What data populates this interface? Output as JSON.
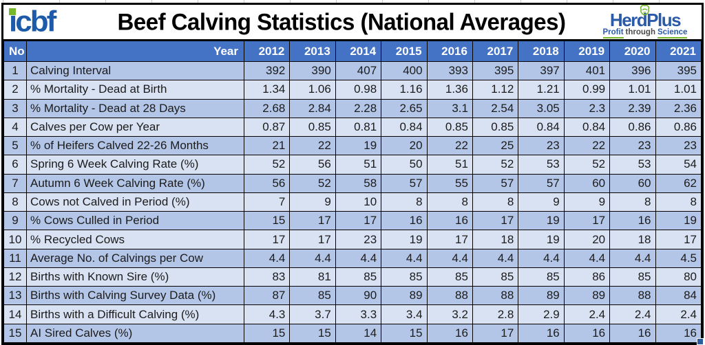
{
  "title": "Beef Calving Statistics (National Averages)",
  "logos": {
    "icbf_text": "icbf",
    "herdplus": {
      "name": "HerdPlus",
      "tagline": [
        "Profit",
        "through",
        "Science"
      ],
      "cow_icon": "cow-doodle-icon"
    }
  },
  "colors": {
    "header_bg": "#4472C4",
    "row_odd": "#B4C6E7",
    "row_even": "#D9E2F3",
    "logo_blue": "#2B5BA8",
    "logo_green": "#76B82A"
  },
  "table": {
    "no_header": "No",
    "year_header": "Year",
    "years": [
      "2012",
      "2013",
      "2014",
      "2015",
      "2016",
      "2017",
      "2018",
      "2019",
      "2020",
      "2021"
    ],
    "rows": [
      {
        "no": "1",
        "label": "Calving Interval",
        "values": [
          "392",
          "390",
          "407",
          "400",
          "393",
          "395",
          "397",
          "401",
          "396",
          "395"
        ]
      },
      {
        "no": "2",
        "label": "% Mortality - Dead at Birth",
        "values": [
          "1.34",
          "1.06",
          "0.98",
          "1.16",
          "1.36",
          "1.12",
          "1.21",
          "0.99",
          "1.01",
          "1.01"
        ]
      },
      {
        "no": "3",
        "label": "% Mortality - Dead at 28 Days",
        "values": [
          "2.68",
          "2.84",
          "2.28",
          "2.65",
          "3.1",
          "2.54",
          "3.05",
          "2.3",
          "2.39",
          "2.36"
        ]
      },
      {
        "no": "4",
        "label": "Calves per Cow per Year",
        "values": [
          "0.87",
          "0.85",
          "0.81",
          "0.84",
          "0.85",
          "0.85",
          "0.84",
          "0.84",
          "0.86",
          "0.86"
        ]
      },
      {
        "no": "5",
        "label": "% of Heifers Calved 22-26 Months",
        "values": [
          "21",
          "22",
          "19",
          "20",
          "22",
          "25",
          "23",
          "22",
          "23",
          "23"
        ]
      },
      {
        "no": "6",
        "label": "Spring 6 Week Calving Rate (%)",
        "values": [
          "52",
          "56",
          "51",
          "50",
          "51",
          "52",
          "53",
          "52",
          "53",
          "54"
        ]
      },
      {
        "no": "7",
        "label": "Autumn 6 Week Calving Rate (%)",
        "values": [
          "56",
          "52",
          "58",
          "57",
          "55",
          "57",
          "57",
          "60",
          "60",
          "62"
        ]
      },
      {
        "no": "8",
        "label": "Cows not Calved in Period (%)",
        "values": [
          "7",
          "9",
          "10",
          "8",
          "8",
          "8",
          "9",
          "9",
          "8",
          "8"
        ]
      },
      {
        "no": "9",
        "label": "% Cows Culled in Period",
        "values": [
          "15",
          "17",
          "17",
          "16",
          "16",
          "17",
          "19",
          "17",
          "16",
          "19"
        ]
      },
      {
        "no": "10",
        "label": "% Recycled Cows",
        "values": [
          "17",
          "17",
          "23",
          "19",
          "17",
          "18",
          "19",
          "20",
          "18",
          "17"
        ]
      },
      {
        "no": "11",
        "label": "Average No. of Calvings per Cow",
        "values": [
          "4.4",
          "4.4",
          "4.4",
          "4.4",
          "4.4",
          "4.4",
          "4.4",
          "4.4",
          "4.4",
          "4.5"
        ]
      },
      {
        "no": "12",
        "label": "Births with Known Sire (%)",
        "values": [
          "83",
          "81",
          "85",
          "85",
          "85",
          "85",
          "85",
          "86",
          "85",
          "80"
        ]
      },
      {
        "no": "13",
        "label": "Births with Calving Survey Data (%)",
        "values": [
          "87",
          "85",
          "90",
          "89",
          "88",
          "88",
          "89",
          "89",
          "88",
          "84"
        ]
      },
      {
        "no": "14",
        "label": "Births with a Difficult Calving (%)",
        "values": [
          "4.3",
          "3.7",
          "3.3",
          "3.4",
          "3.2",
          "2.8",
          "2.9",
          "2.4",
          "2.4",
          "2.4"
        ]
      },
      {
        "no": "15",
        "label": "AI Sired Calves (%)",
        "values": [
          "15",
          "15",
          "14",
          "15",
          "16",
          "17",
          "16",
          "16",
          "16",
          "16"
        ]
      }
    ]
  }
}
